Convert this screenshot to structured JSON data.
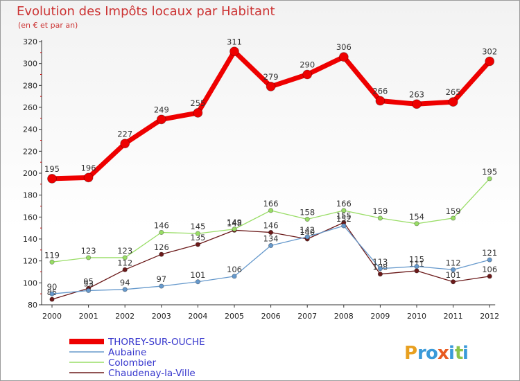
{
  "chart_data": {
    "type": "line",
    "title": "Evolution des Impôts locaux par Habitant",
    "subtitle": "(en € et par an)",
    "xlabel": "",
    "ylabel": "",
    "ylim": [
      80,
      320
    ],
    "yticks": [
      80,
      100,
      120,
      140,
      160,
      180,
      200,
      220,
      240,
      260,
      280,
      300,
      320
    ],
    "categories": [
      "2000",
      "2001",
      "2002",
      "2003",
      "2004",
      "2005",
      "2006",
      "2007",
      "2008",
      "2009",
      "2010",
      "2011",
      "2012"
    ],
    "series": [
      {
        "name": "Chaudenay-la-Ville",
        "color": "#6b1a1a",
        "width": 1.3,
        "radius": 3.2,
        "values": [
          85,
          95,
          112,
          126,
          135,
          148,
          146,
          140,
          155,
          108,
          111,
          101,
          106
        ]
      },
      {
        "name": "Aubaine",
        "color": "#6699cc",
        "width": 1.3,
        "radius": 3.2,
        "values": [
          90,
          93,
          94,
          97,
          101,
          106,
          134,
          142,
          152,
          113,
          115,
          112,
          121
        ]
      },
      {
        "name": "Colombier",
        "color": "#99dd66",
        "width": 1.3,
        "radius": 3.2,
        "values": [
          119,
          123,
          123,
          146,
          145,
          149,
          166,
          158,
          166,
          159,
          154,
          159,
          195
        ]
      },
      {
        "name": "THOREY-SUR-OUCHE",
        "color": "#ee0000",
        "width": 7,
        "radius": 6.5,
        "values": [
          195,
          196,
          227,
          249,
          255,
          311,
          279,
          290,
          306,
          266,
          263,
          265,
          302
        ]
      }
    ],
    "legend": [
      "THOREY-SUR-OUCHE",
      "Aubaine",
      "Colombier",
      "Chaudenay-la-Ville"
    ],
    "legend_position": "bottom-left",
    "grid": false
  },
  "logo": {
    "letters": [
      "P",
      "r",
      "o",
      "x",
      "i",
      "t",
      "i"
    ],
    "colors": [
      "#e8a020",
      "#3a9ad9",
      "#3a9ad9",
      "#e85a20",
      "#3a9ad9",
      "#8bc34a",
      "#3a9ad9"
    ]
  }
}
